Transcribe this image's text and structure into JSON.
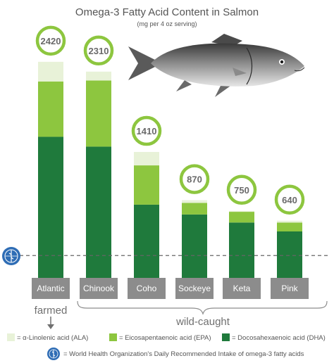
{
  "chart_data": {
    "type": "bar",
    "title": "Omega-3 Fatty Acid Content in Salmon",
    "subtitle": "(mg per 4 oz serving)",
    "categories": [
      "Atlantic",
      "Chinook",
      "Coho",
      "Sockeye",
      "Keta",
      "Pink"
    ],
    "totals": [
      "2420",
      "2310",
      "1410",
      "870",
      "750",
      "640"
    ],
    "series": [
      {
        "name": "= Docosahexaenoic acid (DHA)",
        "color": "#1f7a3c",
        "values": [
          1580,
          1470,
          820,
          710,
          620,
          520
        ]
      },
      {
        "name": "= Eicosapentaenoic acid (EPA)",
        "color": "#8dc63f",
        "values": [
          620,
          740,
          440,
          130,
          120,
          100
        ]
      },
      {
        "name": "= α-Linolenic acid (ALA)",
        "color": "#e8f2d8",
        "values": [
          220,
          100,
          150,
          30,
          10,
          20
        ]
      }
    ],
    "who_reference": {
      "value": 250,
      "label": "= World Health Organization's Daily Recommended Intake of omega-3 fatty acids"
    },
    "groups": [
      {
        "label": "farmed",
        "categories": [
          "Atlantic"
        ]
      },
      {
        "label": "wild-caught",
        "categories": [
          "Chinook",
          "Coho",
          "Sockeye",
          "Keta",
          "Pink"
        ]
      }
    ],
    "ylim": [
      0,
      2600
    ],
    "colors": {
      "bubble_ring": "#8dc63f",
      "category_box": "#8c8c8c",
      "reference_line": "#666666"
    }
  }
}
